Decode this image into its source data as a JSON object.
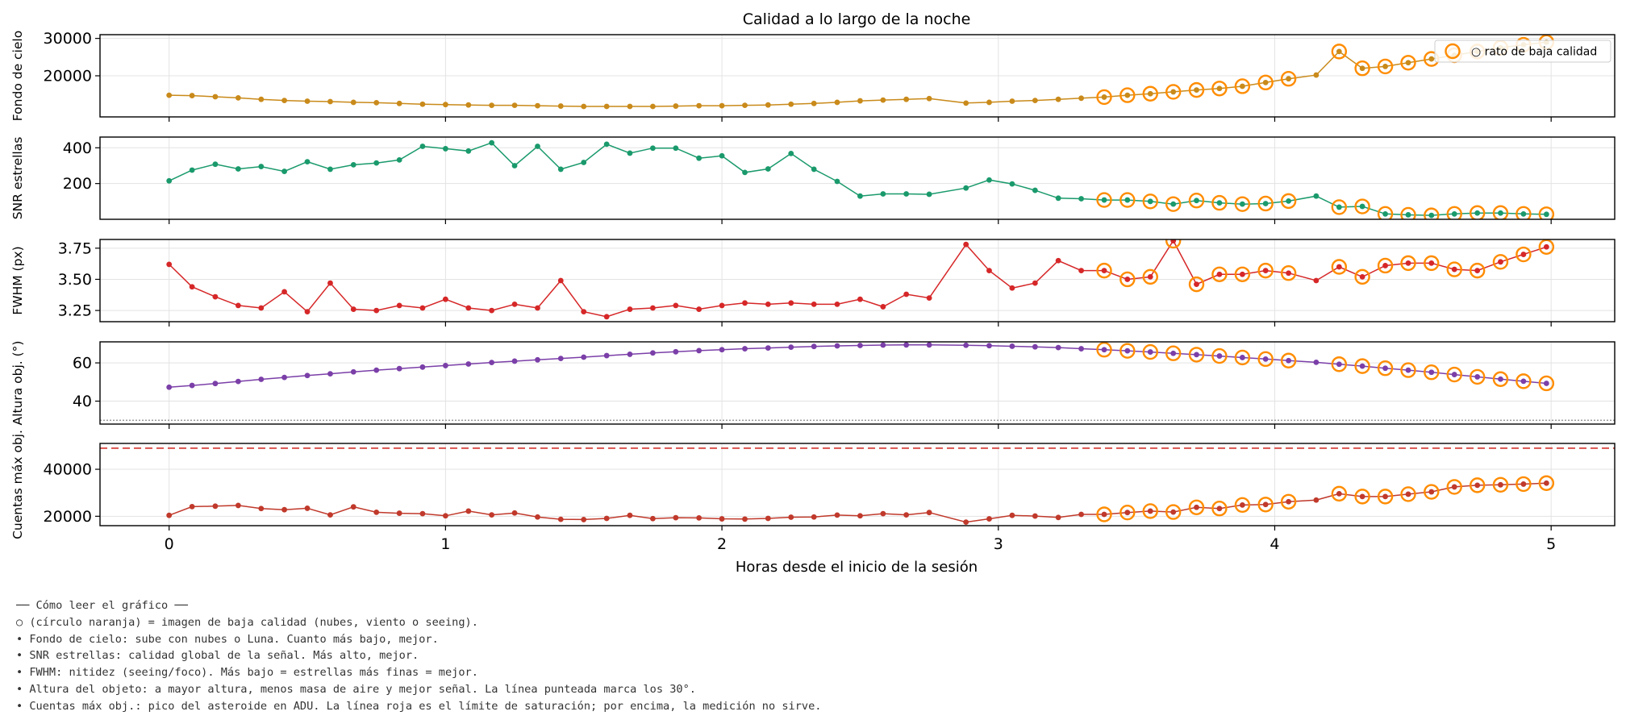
{
  "chart_data": {
    "type": "line",
    "title": "Calidad a lo largo de la noche",
    "xlabel": "Horas desde el inicio de la sesión",
    "xlim": [
      -0.25,
      5.23
    ],
    "x_ticks": [
      0,
      1,
      2,
      3,
      4,
      5
    ],
    "x_tick_labels": [
      "0",
      "1",
      "2",
      "3",
      "4",
      "5"
    ],
    "grid": true,
    "x": [
      0.0,
      0.083,
      0.167,
      0.25,
      0.333,
      0.417,
      0.5,
      0.583,
      0.667,
      0.75,
      0.833,
      0.917,
      1.0,
      1.083,
      1.167,
      1.25,
      1.333,
      1.417,
      1.5,
      1.583,
      1.667,
      1.75,
      1.833,
      1.917,
      2.0,
      2.083,
      2.167,
      2.25,
      2.333,
      2.417,
      2.5,
      2.583,
      2.667,
      2.75,
      2.883,
      2.967,
      3.05,
      3.133,
      3.217,
      3.3,
      3.383,
      3.467,
      3.55,
      3.633,
      3.717,
      3.8,
      3.883,
      3.967,
      4.05,
      4.15,
      4.233,
      4.317,
      4.4,
      4.483,
      4.567,
      4.65,
      4.733,
      4.817,
      4.9,
      4.983
    ],
    "low_quality_indices": [
      40,
      41,
      42,
      43,
      44,
      45,
      46,
      47,
      48,
      50,
      51,
      52,
      53,
      54,
      55,
      56,
      57,
      58,
      59
    ],
    "legend": {
      "label": "○ rato de baja calidad",
      "position": "top-right"
    },
    "panels": [
      {
        "ylabel": "Fondo de cielo",
        "color": "#c98a1a",
        "ylim": [
          9000,
          31000
        ],
        "y_ticks": [
          20000,
          30000
        ],
        "y_tick_labels": [
          "20000",
          "30000"
        ],
        "values": [
          14800,
          14700,
          14400,
          14100,
          13700,
          13400,
          13200,
          13100,
          12900,
          12800,
          12600,
          12400,
          12300,
          12200,
          12100,
          12100,
          12000,
          11900,
          11800,
          11800,
          11800,
          11800,
          11900,
          12000,
          12000,
          12100,
          12200,
          12400,
          12600,
          12900,
          13300,
          13500,
          13700,
          13900,
          12700,
          12900,
          13200,
          13400,
          13700,
          14000,
          14300,
          14800,
          15200,
          15700,
          16200,
          16600,
          17200,
          18200,
          19200,
          20200,
          26500,
          22000,
          22500,
          23500,
          24500,
          25500,
          26500,
          27500,
          28300,
          29000
        ]
      },
      {
        "ylabel": "SNR estrellas",
        "color": "#1a9a6c",
        "ylim": [
          0,
          460
        ],
        "y_ticks": [
          200,
          400
        ],
        "y_tick_labels": [
          "200",
          "400"
        ],
        "values": [
          215,
          275,
          308,
          282,
          295,
          268,
          322,
          280,
          305,
          315,
          332,
          408,
          395,
          382,
          428,
          300,
          408,
          280,
          318,
          420,
          370,
          398,
          398,
          342,
          355,
          262,
          282,
          368,
          280,
          212,
          130,
          142,
          142,
          140,
          175,
          220,
          198,
          162,
          118,
          115,
          108,
          108,
          100,
          85,
          105,
          92,
          85,
          88,
          102,
          130,
          68,
          72,
          30,
          25,
          22,
          30,
          35,
          35,
          30,
          28
        ]
      },
      {
        "ylabel": "FWHM (px)",
        "color": "#d62728",
        "ylim": [
          3.16,
          3.82
        ],
        "y_ticks": [
          3.25,
          3.5,
          3.75
        ],
        "y_tick_labels": [
          "3.25",
          "3.50",
          "3.75"
        ],
        "values": [
          3.62,
          3.44,
          3.36,
          3.29,
          3.27,
          3.4,
          3.24,
          3.47,
          3.26,
          3.25,
          3.29,
          3.27,
          3.34,
          3.27,
          3.25,
          3.3,
          3.27,
          3.49,
          3.24,
          3.2,
          3.26,
          3.27,
          3.29,
          3.26,
          3.29,
          3.31,
          3.3,
          3.31,
          3.3,
          3.3,
          3.34,
          3.28,
          3.38,
          3.35,
          3.78,
          3.57,
          3.43,
          3.47,
          3.65,
          3.57,
          3.57,
          3.5,
          3.52,
          3.81,
          3.46,
          3.54,
          3.54,
          3.57,
          3.55,
          3.49,
          3.6,
          3.52,
          3.61,
          3.63,
          3.63,
          3.58,
          3.57,
          3.64,
          3.7,
          3.76
        ]
      },
      {
        "ylabel": "Altura obj. (°)",
        "color": "#7b3fa8",
        "ylim": [
          28,
          71
        ],
        "y_ticks": [
          40,
          60
        ],
        "y_tick_labels": [
          "40",
          "60"
        ],
        "reference_line": {
          "y": 30,
          "style": "dotted"
        },
        "values": [
          47.3,
          48.2,
          49.2,
          50.3,
          51.4,
          52.4,
          53.4,
          54.3,
          55.3,
          56.2,
          57.0,
          57.8,
          58.6,
          59.4,
          60.2,
          60.9,
          61.6,
          62.3,
          63.0,
          63.8,
          64.5,
          65.2,
          65.8,
          66.4,
          66.9,
          67.4,
          67.8,
          68.2,
          68.6,
          68.9,
          69.1,
          69.3,
          69.4,
          69.4,
          69.2,
          69.0,
          68.7,
          68.4,
          68.0,
          67.4,
          66.9,
          66.3,
          65.7,
          65.0,
          64.3,
          63.6,
          62.8,
          62.0,
          61.2,
          60.3,
          59.3,
          58.3,
          57.2,
          56.2,
          55.1,
          53.9,
          52.7,
          51.5,
          50.4,
          49.3
        ]
      },
      {
        "ylabel": "Cuentas máx obj.",
        "color": "#c0392b",
        "ylim": [
          16000,
          51000
        ],
        "y_ticks": [
          20000,
          40000
        ],
        "y_tick_labels": [
          "20000",
          "40000"
        ],
        "reference_line": {
          "y": 49000,
          "style": "dashed",
          "color": "#d9534f"
        },
        "values": [
          20400,
          24100,
          24300,
          24600,
          23300,
          22800,
          23400,
          20600,
          24000,
          21700,
          21300,
          21100,
          20200,
          22200,
          20600,
          21400,
          19700,
          18700,
          18600,
          19100,
          20400,
          19000,
          19400,
          19300,
          18900,
          18800,
          19100,
          19600,
          19700,
          20500,
          20200,
          21100,
          20600,
          21600,
          17500,
          18900,
          20400,
          20100,
          19500,
          20800,
          20800,
          21600,
          22200,
          21800,
          23800,
          23300,
          24800,
          25000,
          26200,
          26900,
          29600,
          28400,
          28400,
          29400,
          30400,
          32500,
          33200,
          33400,
          33700,
          34100
        ]
      }
    ]
  },
  "notes": {
    "lines": [
      "── Cómo leer el gráfico ──",
      "○ (círculo naranja) = imagen de baja calidad (nubes, viento o seeing).",
      "• Fondo de cielo: sube con nubes o Luna. Cuanto más bajo, mejor.",
      "• SNR estrellas: calidad global de la señal. Más alto, mejor.",
      "• FWHM: nitidez (seeing/foco). Más bajo = estrellas más finas = mejor.",
      "• Altura del objeto: a mayor altura, menos masa de aire y mejor señal. La línea punteada marca los 30°.",
      "• Cuentas máx obj.: pico del asteroide en ADU. La línea roja es el límite de saturación; por encima, la medición no sirve."
    ]
  }
}
